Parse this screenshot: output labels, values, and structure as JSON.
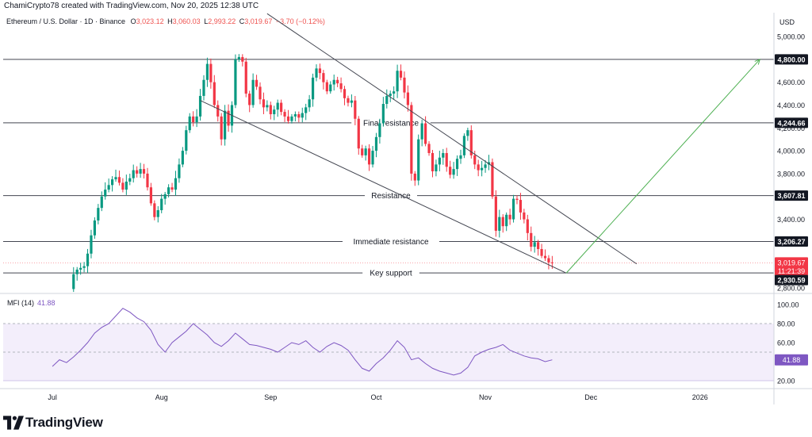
{
  "header": {
    "caption": "ChamiCrypto78 created with TradingView.com, Nov 20, 2025 12:38 UTC"
  },
  "symbol": {
    "name": "Ethereum / U.S. Dollar · 1D · Binance",
    "open_label": "O",
    "open": "3,023.12",
    "high_label": "H",
    "high": "3,060.03",
    "low_label": "L",
    "low": "2,993.22",
    "close_label": "C",
    "close": "3,019.67",
    "change": "−3.70 (−0.12%)"
  },
  "price_axis": {
    "currency": "USD"
  },
  "colors": {
    "up": "#089981",
    "down": "#f23645",
    "hline": "#434651",
    "trend": "#434651",
    "target": "#4caf50",
    "mfi": "#7e57c2",
    "mfi_band": "#f3eefb",
    "tag_bg": "#131722",
    "last_bg": "#f23645"
  },
  "indicator": {
    "label": "MFI (14)",
    "value": "41.88"
  },
  "brand": {
    "name": "TradingView",
    "logo_icon": "tradingview-logo-icon"
  },
  "chart_data": [
    {
      "type": "candlestick",
      "title": "Ethereum / U.S. Dollar · 1D · Binance",
      "x_tick_labels": [
        "Jul",
        "Aug",
        "Sep",
        "Oct",
        "Nov",
        "Dec",
        "2026"
      ],
      "x_ticks": [
        {
          "label": "Jul",
          "date": "2025-07-01"
        },
        {
          "label": "Aug",
          "date": "2025-08-01"
        },
        {
          "label": "Sep",
          "date": "2025-09-01"
        },
        {
          "label": "Oct",
          "date": "2025-10-01"
        },
        {
          "label": "Nov",
          "date": "2025-11-01"
        },
        {
          "label": "Dec",
          "date": "2025-12-01"
        },
        {
          "label": "2026",
          "date": "2026-01-01"
        }
      ],
      "y_tick_labels": [
        "5,000.00",
        "4,800.00",
        "4,600.00",
        "4,400.00",
        "4,200.00",
        "4,000.00",
        "3,800.00",
        "3,600.00",
        "3,400.00",
        "3,200.00",
        "3,000.00",
        "2,800.00"
      ],
      "ylim": [
        2800,
        5050
      ],
      "x_range": [
        "2025-06-17",
        "2026-01-22"
      ],
      "grid": false,
      "series": [
        {
          "name": "ETHUSD daily closes (approximate, read from chart)",
          "kind": "close_path",
          "points": [
            [
              "2025-07-06",
              2790
            ],
            [
              "2025-07-07",
              2920
            ],
            [
              "2025-07-08",
              2960
            ],
            [
              "2025-07-09",
              2975
            ],
            [
              "2025-07-10",
              2990
            ],
            [
              "2025-07-11",
              3100
            ],
            [
              "2025-07-12",
              3260
            ],
            [
              "2025-07-13",
              3390
            ],
            [
              "2025-07-14",
              3500
            ],
            [
              "2025-07-15",
              3600
            ],
            [
              "2025-07-16",
              3660
            ],
            [
              "2025-07-17",
              3700
            ],
            [
              "2025-07-18",
              3750
            ],
            [
              "2025-07-19",
              3770
            ],
            [
              "2025-07-20",
              3720
            ],
            [
              "2025-07-21",
              3660
            ],
            [
              "2025-07-22",
              3730
            ],
            [
              "2025-07-23",
              3760
            ],
            [
              "2025-07-24",
              3830
            ],
            [
              "2025-07-25",
              3800
            ],
            [
              "2025-07-26",
              3840
            ],
            [
              "2025-07-27",
              3800
            ],
            [
              "2025-07-28",
              3680
            ],
            [
              "2025-07-29",
              3540
            ],
            [
              "2025-07-30",
              3420
            ],
            [
              "2025-07-31",
              3480
            ],
            [
              "2025-08-01",
              3580
            ],
            [
              "2025-08-02",
              3620
            ],
            [
              "2025-08-03",
              3680
            ],
            [
              "2025-08-04",
              3660
            ],
            [
              "2025-08-05",
              3760
            ],
            [
              "2025-08-06",
              3880
            ],
            [
              "2025-08-07",
              4000
            ],
            [
              "2025-08-08",
              4180
            ],
            [
              "2025-08-09",
              4300
            ],
            [
              "2025-08-10",
              4250
            ],
            [
              "2025-08-11",
              4300
            ],
            [
              "2025-08-12",
              4480
            ],
            [
              "2025-08-13",
              4620
            ],
            [
              "2025-08-14",
              4760
            ],
            [
              "2025-08-15",
              4600
            ],
            [
              "2025-08-16",
              4400
            ],
            [
              "2025-08-17",
              4300
            ],
            [
              "2025-08-18",
              4100
            ],
            [
              "2025-08-19",
              4350
            ],
            [
              "2025-08-20",
              4220
            ],
            [
              "2025-08-21",
              4400
            ],
            [
              "2025-08-22",
              4800
            ],
            [
              "2025-08-23",
              4820
            ],
            [
              "2025-08-24",
              4780
            ],
            [
              "2025-08-25",
              4500
            ],
            [
              "2025-08-26",
              4400
            ],
            [
              "2025-08-27",
              4620
            ],
            [
              "2025-08-28",
              4560
            ],
            [
              "2025-08-29",
              4450
            ],
            [
              "2025-08-30",
              4380
            ],
            [
              "2025-08-31",
              4400
            ],
            [
              "2025-09-01",
              4320
            ],
            [
              "2025-09-02",
              4360
            ],
            [
              "2025-09-03",
              4420
            ],
            [
              "2025-09-04",
              4340
            ],
            [
              "2025-09-05",
              4300
            ],
            [
              "2025-09-06",
              4260
            ],
            [
              "2025-09-07",
              4300
            ],
            [
              "2025-09-08",
              4320
            ],
            [
              "2025-09-09",
              4290
            ],
            [
              "2025-09-10",
              4330
            ],
            [
              "2025-09-11",
              4380
            ],
            [
              "2025-09-12",
              4450
            ],
            [
              "2025-09-13",
              4640
            ],
            [
              "2025-09-14",
              4720
            ],
            [
              "2025-09-15",
              4680
            ],
            [
              "2025-09-16",
              4600
            ],
            [
              "2025-09-17",
              4520
            ],
            [
              "2025-09-18",
              4580
            ],
            [
              "2025-09-19",
              4620
            ],
            [
              "2025-09-20",
              4590
            ],
            [
              "2025-09-21",
              4540
            ],
            [
              "2025-09-22",
              4460
            ],
            [
              "2025-09-23",
              4420
            ],
            [
              "2025-09-24",
              4440
            ],
            [
              "2025-09-25",
              4280
            ],
            [
              "2025-09-26",
              4020
            ],
            [
              "2025-09-27",
              3960
            ],
            [
              "2025-09-28",
              4020
            ],
            [
              "2025-09-29",
              3880
            ],
            [
              "2025-09-30",
              4000
            ],
            [
              "2025-10-01",
              4120
            ],
            [
              "2025-10-02",
              4240
            ],
            [
              "2025-10-03",
              4410
            ],
            [
              "2025-10-04",
              4480
            ],
            [
              "2025-10-05",
              4500
            ],
            [
              "2025-10-06",
              4520
            ],
            [
              "2025-10-07",
              4700
            ],
            [
              "2025-10-08",
              4640
            ],
            [
              "2025-10-09",
              4510
            ],
            [
              "2025-10-10",
              4400
            ],
            [
              "2025-10-11",
              3800
            ],
            [
              "2025-10-12",
              3740
            ],
            [
              "2025-10-13",
              4100
            ],
            [
              "2025-10-14",
              4240
            ],
            [
              "2025-10-15",
              4060
            ],
            [
              "2025-10-16",
              3980
            ],
            [
              "2025-10-17",
              3820
            ],
            [
              "2025-10-18",
              3880
            ],
            [
              "2025-10-19",
              3940
            ],
            [
              "2025-10-20",
              3980
            ],
            [
              "2025-10-21",
              3860
            ],
            [
              "2025-10-22",
              3790
            ],
            [
              "2025-10-23",
              3840
            ],
            [
              "2025-10-24",
              3930
            ],
            [
              "2025-10-25",
              3960
            ],
            [
              "2025-10-26",
              4130
            ],
            [
              "2025-10-27",
              4180
            ],
            [
              "2025-10-28",
              3960
            ],
            [
              "2025-10-29",
              3880
            ],
            [
              "2025-10-30",
              3830
            ],
            [
              "2025-10-31",
              3850
            ],
            [
              "2025-11-01",
              3880
            ],
            [
              "2025-11-02",
              3900
            ],
            [
              "2025-11-03",
              3600
            ],
            [
              "2025-11-04",
              3300
            ],
            [
              "2025-11-05",
              3420
            ],
            [
              "2025-11-06",
              3340
            ],
            [
              "2025-11-07",
              3440
            ],
            [
              "2025-11-08",
              3400
            ],
            [
              "2025-11-09",
              3580
            ],
            [
              "2025-11-10",
              3570
            ],
            [
              "2025-11-11",
              3460
            ],
            [
              "2025-11-12",
              3400
            ],
            [
              "2025-11-13",
              3280
            ],
            [
              "2025-11-14",
              3160
            ],
            [
              "2025-11-15",
              3200
            ],
            [
              "2025-11-16",
              3140
            ],
            [
              "2025-11-17",
              3080
            ],
            [
              "2025-11-18",
              3060
            ],
            [
              "2025-11-19",
              3023
            ],
            [
              "2025-11-20",
              3019.67
            ]
          ]
        }
      ],
      "horizontal_levels": [
        {
          "price": 4800.0,
          "tag": "4,800.00",
          "label": ""
        },
        {
          "price": 4244.66,
          "tag": "4,244.66",
          "label": "Final resistance"
        },
        {
          "price": 3607.81,
          "tag": "3,607.81",
          "label": "Resistance"
        },
        {
          "price": 3206.27,
          "tag": "3,206.27",
          "label": "Immediate resistance"
        },
        {
          "price": 2930.59,
          "tag": "2,930.59",
          "label": "Key support"
        }
      ],
      "trendlines": [
        {
          "name": "upper wedge line",
          "from": [
            "2025-08-31",
            5200
          ],
          "to": [
            "2025-12-14",
            3010
          ]
        },
        {
          "name": "lower wedge line",
          "from": [
            "2025-08-12",
            4440
          ],
          "to": [
            "2025-11-24",
            2930
          ]
        }
      ],
      "target_arrow": {
        "from": [
          "2025-11-24",
          2930
        ],
        "to": [
          "2026-01-18",
          4800
        ]
      },
      "last_price": {
        "value": "3,019.67",
        "countdown": "11:21:39"
      }
    },
    {
      "type": "line",
      "title": "MFI (14)",
      "y_tick_labels": [
        "100.00",
        "80.00",
        "60.00",
        "20.00"
      ],
      "ylim": [
        15,
        105
      ],
      "band": [
        20,
        80
      ],
      "dashed_levels": [
        80,
        50
      ],
      "last_value": "41.88",
      "points": [
        [
          "2025-07-01",
          35
        ],
        [
          "2025-07-03",
          42
        ],
        [
          "2025-07-05",
          39
        ],
        [
          "2025-07-07",
          45
        ],
        [
          "2025-07-09",
          52
        ],
        [
          "2025-07-11",
          60
        ],
        [
          "2025-07-13",
          70
        ],
        [
          "2025-07-15",
          76
        ],
        [
          "2025-07-17",
          80
        ],
        [
          "2025-07-19",
          88
        ],
        [
          "2025-07-21",
          96
        ],
        [
          "2025-07-23",
          92
        ],
        [
          "2025-07-25",
          86
        ],
        [
          "2025-07-27",
          82
        ],
        [
          "2025-07-29",
          73
        ],
        [
          "2025-07-31",
          58
        ],
        [
          "2025-08-02",
          50
        ],
        [
          "2025-08-04",
          60
        ],
        [
          "2025-08-06",
          66
        ],
        [
          "2025-08-08",
          72
        ],
        [
          "2025-08-10",
          80
        ],
        [
          "2025-08-12",
          74
        ],
        [
          "2025-08-14",
          68
        ],
        [
          "2025-08-16",
          60
        ],
        [
          "2025-08-18",
          56
        ],
        [
          "2025-08-20",
          62
        ],
        [
          "2025-08-22",
          70
        ],
        [
          "2025-08-24",
          64
        ],
        [
          "2025-08-26",
          58
        ],
        [
          "2025-08-28",
          57
        ],
        [
          "2025-08-30",
          55
        ],
        [
          "2025-09-01",
          53
        ],
        [
          "2025-09-03",
          50
        ],
        [
          "2025-09-05",
          55
        ],
        [
          "2025-09-07",
          60
        ],
        [
          "2025-09-09",
          58
        ],
        [
          "2025-09-11",
          62
        ],
        [
          "2025-09-13",
          55
        ],
        [
          "2025-09-15",
          50
        ],
        [
          "2025-09-17",
          56
        ],
        [
          "2025-09-19",
          60
        ],
        [
          "2025-09-21",
          57
        ],
        [
          "2025-09-23",
          52
        ],
        [
          "2025-09-25",
          42
        ],
        [
          "2025-09-27",
          33
        ],
        [
          "2025-09-29",
          30
        ],
        [
          "2025-10-01",
          38
        ],
        [
          "2025-10-03",
          44
        ],
        [
          "2025-10-05",
          52
        ],
        [
          "2025-10-07",
          62
        ],
        [
          "2025-10-09",
          55
        ],
        [
          "2025-10-11",
          42
        ],
        [
          "2025-10-13",
          44
        ],
        [
          "2025-10-15",
          38
        ],
        [
          "2025-10-17",
          33
        ],
        [
          "2025-10-19",
          30
        ],
        [
          "2025-10-21",
          28
        ],
        [
          "2025-10-23",
          26
        ],
        [
          "2025-10-25",
          28
        ],
        [
          "2025-10-27",
          34
        ],
        [
          "2025-10-29",
          46
        ],
        [
          "2025-10-31",
          50
        ],
        [
          "2025-11-02",
          53
        ],
        [
          "2025-11-04",
          55
        ],
        [
          "2025-11-06",
          58
        ],
        [
          "2025-11-08",
          52
        ],
        [
          "2025-11-10",
          49
        ],
        [
          "2025-11-12",
          46
        ],
        [
          "2025-11-14",
          44
        ],
        [
          "2025-11-16",
          43
        ],
        [
          "2025-11-18",
          40
        ],
        [
          "2025-11-20",
          41.88
        ]
      ]
    }
  ]
}
